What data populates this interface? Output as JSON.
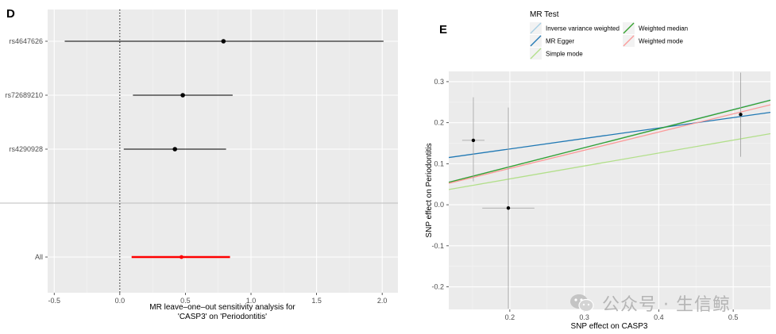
{
  "panels": {
    "d_label": "D",
    "e_label": "E"
  },
  "chart_data": [
    {
      "type": "forest",
      "panel": "D",
      "xlabel_line1": "MR leave–one–out sensitivity analysis for",
      "xlabel_line2": "'CASP3' on 'Periodontitis'",
      "xlim": [
        -0.55,
        2.12
      ],
      "xticks": [
        -0.5,
        0.0,
        0.5,
        1.0,
        1.5,
        2.0
      ],
      "xtick_labels": [
        "-0.5",
        "0.0",
        "0.5",
        "1.0",
        "1.5",
        "2.0"
      ],
      "reference_line": 0,
      "rows": [
        {
          "label": "rs4647626",
          "estimate": 0.79,
          "lower": -0.42,
          "upper": 2.01,
          "color": "#000000"
        },
        {
          "label": "rs72689210",
          "estimate": 0.48,
          "lower": 0.1,
          "upper": 0.86,
          "color": "#000000"
        },
        {
          "label": "rs4290928",
          "estimate": 0.42,
          "lower": 0.03,
          "upper": 0.81,
          "color": "#000000"
        },
        {
          "label": "All",
          "estimate": 0.47,
          "lower": 0.09,
          "upper": 0.84,
          "color": "#ff0000"
        }
      ]
    },
    {
      "type": "scatter",
      "panel": "E",
      "xlabel": "SNP effect on CASP3",
      "ylabel": "SNP effect on Periodontitis",
      "xlim": [
        0.118,
        0.55
      ],
      "ylim": [
        -0.255,
        0.325
      ],
      "xticks": [
        0.2,
        0.3,
        0.4,
        0.5
      ],
      "xtick_labels": [
        "0.2",
        "0.3",
        "0.4",
        "0.5"
      ],
      "yticks": [
        -0.2,
        -0.1,
        0.0,
        0.1,
        0.2,
        0.3
      ],
      "ytick_labels": [
        "-0.2",
        "-0.1",
        "0.0",
        "0.1",
        "0.2",
        "0.3"
      ],
      "points": [
        {
          "x": 0.151,
          "y": 0.157,
          "xerr": 0.015,
          "yerr_low": 0.057,
          "yerr_high": 0.262
        },
        {
          "x": 0.198,
          "y": -0.008,
          "xerr": 0.035,
          "yerr_low": -0.253,
          "yerr_high": 0.237
        },
        {
          "x": 0.51,
          "y": 0.22,
          "xerr": 0.0,
          "yerr_low": 0.117,
          "yerr_high": 0.322
        }
      ],
      "legend_title": "MR Test",
      "series": [
        {
          "name": "Inverse variance weighted",
          "color": "#a6cee3",
          "intercept": 0.0,
          "slope": 0.465
        },
        {
          "name": "MR Egger",
          "color": "#1f78b4",
          "intercept": 0.085,
          "slope": 0.255
        },
        {
          "name": "Simple mode",
          "color": "#b2df8a",
          "intercept": 0.0,
          "slope": 0.315
        },
        {
          "name": "Weighted median",
          "color": "#33a02c",
          "intercept": 0.0,
          "slope": 0.463
        },
        {
          "name": "Weighted mode",
          "color": "#fb9a99",
          "intercept": 0.0,
          "slope": 0.443
        }
      ]
    }
  ],
  "watermark": {
    "text": "公众号 · 生信鲸",
    "icon": "wechat-icon"
  }
}
